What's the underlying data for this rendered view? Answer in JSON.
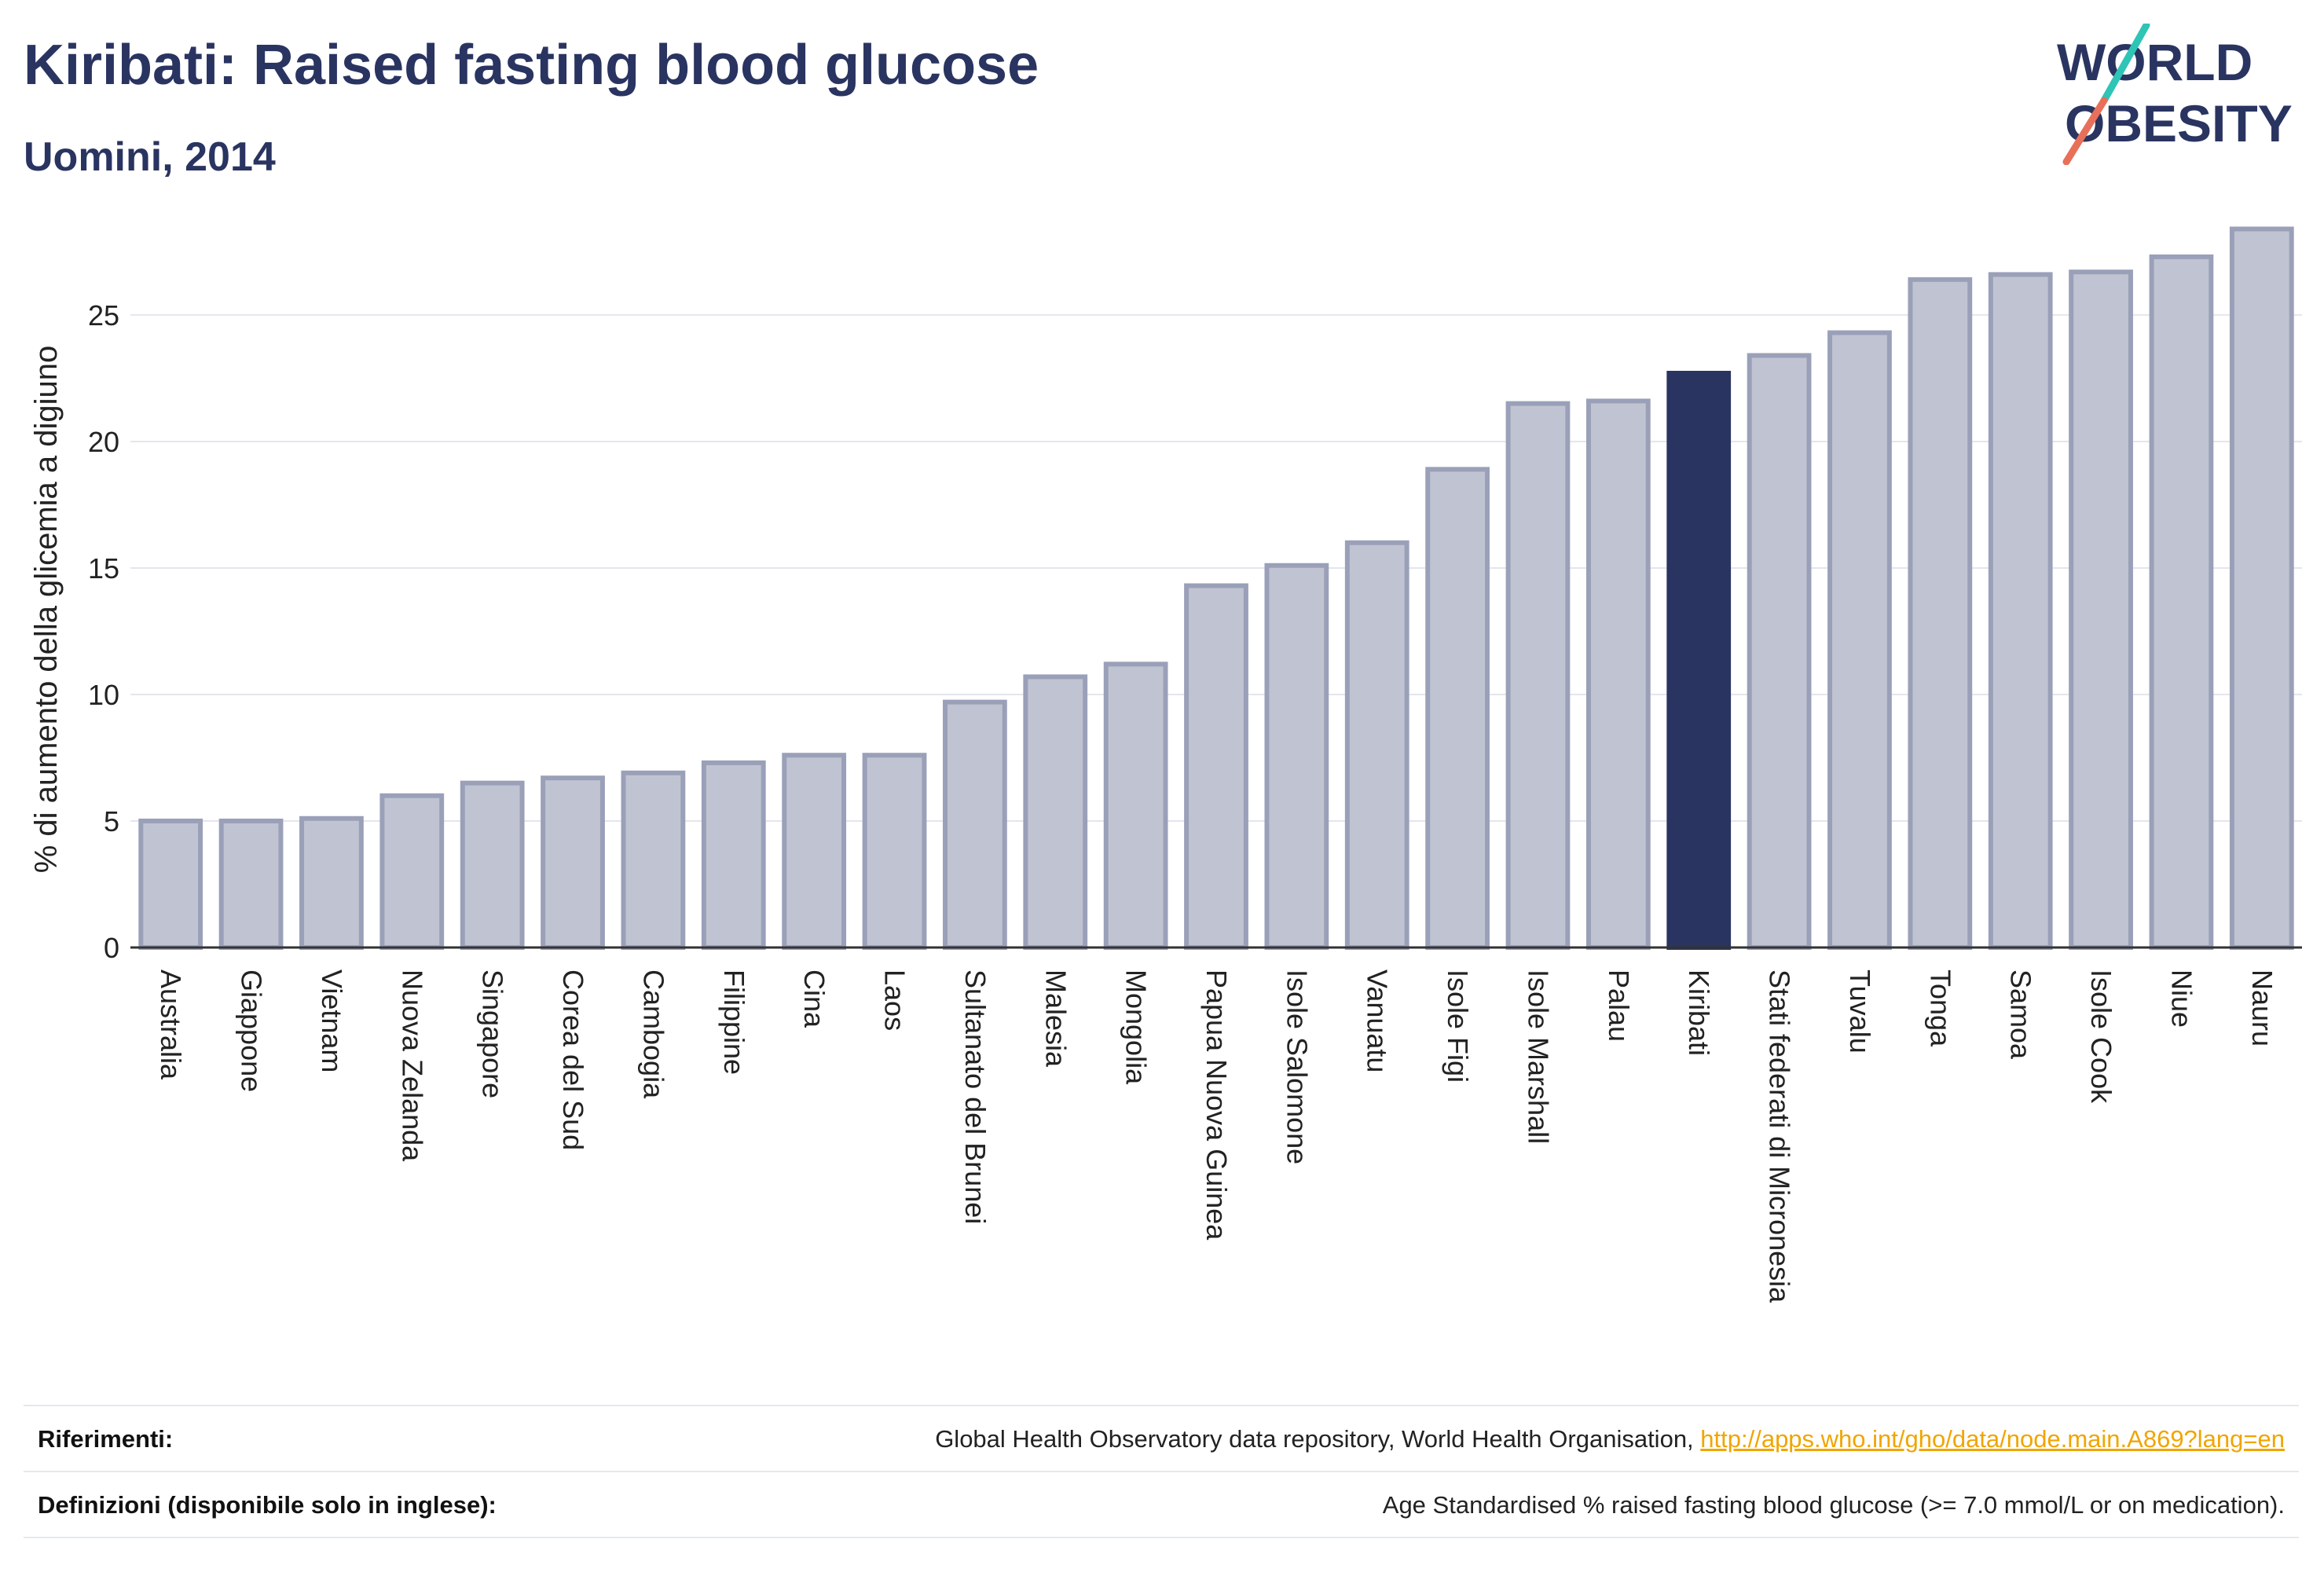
{
  "header": {
    "title": "Kiribati: Raised fasting blood glucose",
    "subtitle": "Uomini, 2014"
  },
  "logo": {
    "line1": "WORLD",
    "line2": "OBESITY",
    "colors": {
      "text": "#2a3461",
      "slash_top": "#2ec4b6",
      "slash_bottom": "#e8705a"
    }
  },
  "colors": {
    "bar": "#c0c4d2",
    "bar_stroke": "#9aa0b8",
    "highlight": "#2a3461",
    "grid": "#e4e6ee",
    "axis": "#333333"
  },
  "chart_data": {
    "type": "bar",
    "title": "Kiribati: Raised fasting blood glucose",
    "subtitle": "Uomini, 2014",
    "xlabel": "",
    "ylabel": "% di aumento della glicemia a digiuno",
    "ylim": [
      0,
      28.6
    ],
    "yticks": [
      0,
      5,
      10,
      15,
      20,
      25
    ],
    "grid": true,
    "highlight": "Kiribati",
    "categories": [
      "Australia",
      "Giappone",
      "Vietnam",
      "Nuova Zelanda",
      "Singapore",
      "Corea del Sud",
      "Cambogia",
      "Filippine",
      "Cina",
      "Laos",
      "Sultanato del Brunei",
      "Malesia",
      "Mongolia",
      "Papua Nuova Guinea",
      "Isole Salomone",
      "Vanuatu",
      "Isole Figi",
      "Isole Marshall",
      "Palau",
      "Kiribati",
      "Stati federati di Micronesia",
      "Tuvalu",
      "Tonga",
      "Samoa",
      "Isole Cook",
      "Niue",
      "Nauru"
    ],
    "values": [
      5.0,
      5.0,
      5.1,
      6.0,
      6.5,
      6.7,
      6.9,
      7.3,
      7.6,
      7.6,
      9.7,
      10.7,
      11.2,
      14.3,
      15.1,
      16.0,
      18.9,
      21.5,
      21.6,
      22.7,
      23.4,
      24.3,
      26.4,
      26.6,
      26.7,
      27.3,
      28.4
    ]
  },
  "footer": {
    "references_label": "Riferimenti:",
    "references_text": "Global Health Observatory data repository, World Health Organisation, ",
    "references_link": "http://apps.who.int/gho/data/node.main.A869?lang=en",
    "definitions_label": "Definizioni (disponibile solo in inglese):",
    "definitions_text": "Age Standardised % raised fasting blood glucose (>= 7.0 mmol/L or on medication)."
  }
}
